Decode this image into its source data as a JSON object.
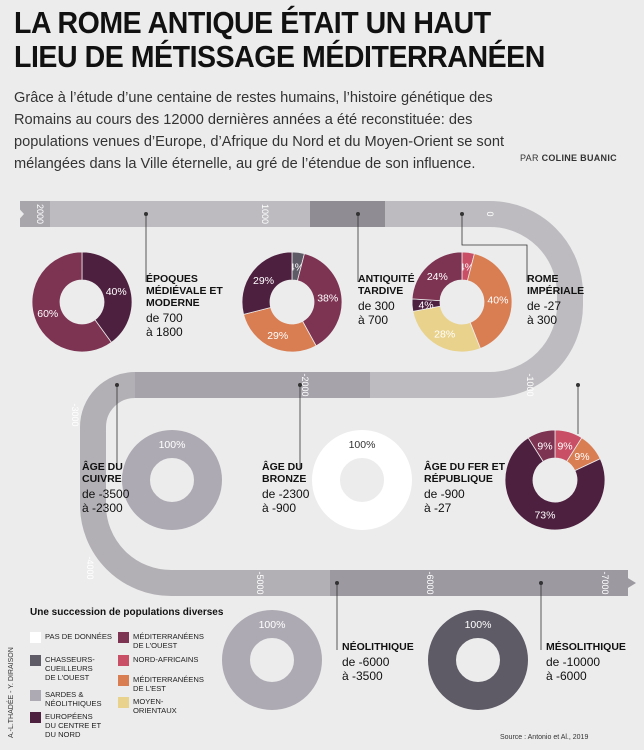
{
  "header": {
    "title_line1": "LA ROME ANTIQUE ÉTAIT UN HAUT",
    "title_line2": "LIEU DE MÉTISSAGE MÉDITERRANÉEN",
    "intro": "Grâce à l’étude d’une centaine de restes humains, l’histoire génétique des Romains au cours des 12000 dernières années a été reconstituée: des populations venues d’Europe, d’Afrique du Nord et du Moyen-Orient se sont mélangées dans la Ville éternelle, au gré de l’étendue de son influence.",
    "byline_prefix": "PAR",
    "byline_author": "COLINE BUANIC"
  },
  "colors": {
    "pas_de_donnees": "#ffffff",
    "chasseurs": "#5e5a66",
    "sardes": "#aeaab3",
    "europeens": "#4e2040",
    "med_ouest": "#7d3352",
    "nord_africains": "#c94f66",
    "med_est": "#d97d52",
    "moyen_orientaux": "#e9d28c"
  },
  "timeline": {
    "ticks": [
      "2000",
      "1000",
      "0",
      "-1000",
      "-2000",
      "-3000",
      "-4000",
      "-5000",
      "-6000",
      "-7000"
    ]
  },
  "chart_data": {
    "type": "pie",
    "variant": "donut",
    "periods": [
      {
        "name_lines": [
          "ÉPOQUES",
          "MÉDIÉVALE ET",
          "MODERNE"
        ],
        "date_lines": [
          "de 700",
          "à 1800"
        ],
        "slices": [
          {
            "group": "europeens",
            "value": 40
          },
          {
            "group": "med_ouest",
            "value": 60
          }
        ]
      },
      {
        "name_lines": [
          "ANTIQUITÉ",
          "TARDIVE"
        ],
        "date_lines": [
          "de 300",
          "à 700"
        ],
        "slices": [
          {
            "group": "chasseurs",
            "value": 4
          },
          {
            "group": "med_ouest",
            "value": 38
          },
          {
            "group": "med_est",
            "value": 29
          },
          {
            "group": "europeens",
            "value": 29
          }
        ]
      },
      {
        "name_lines": [
          "ROME",
          "IMPÉRIALE"
        ],
        "date_lines": [
          "de -27",
          "à 300"
        ],
        "slices": [
          {
            "group": "nord_africains",
            "value": 4
          },
          {
            "group": "med_est",
            "value": 40
          },
          {
            "group": "moyen_orientaux",
            "value": 28
          },
          {
            "group": "europeens",
            "value": 4
          },
          {
            "group": "med_ouest",
            "value": 24
          }
        ]
      },
      {
        "name_lines": [
          "ÂGE DU FER ET",
          "RÉPUBLIQUE"
        ],
        "date_lines": [
          "de -900",
          "à -27"
        ],
        "slices": [
          {
            "group": "nord_africains",
            "value": 9
          },
          {
            "group": "med_est",
            "value": 9
          },
          {
            "group": "europeens",
            "value": 73
          },
          {
            "group": "med_ouest",
            "value": 9
          }
        ]
      },
      {
        "name_lines": [
          "ÂGE DU",
          "BRONZE"
        ],
        "date_lines": [
          "de -2300",
          "à -900"
        ],
        "slices": [
          {
            "group": "pas_de_donnees",
            "value": 100
          }
        ]
      },
      {
        "name_lines": [
          "ÂGE DU",
          "CUIVRE"
        ],
        "date_lines": [
          "de -3500",
          "à -2300"
        ],
        "slices": [
          {
            "group": "sardes",
            "value": 100
          }
        ]
      },
      {
        "name_lines": [
          "NÉOLITHIQUE"
        ],
        "date_lines": [
          "de -6000",
          "à -3500"
        ],
        "slices": [
          {
            "group": "sardes",
            "value": 100
          }
        ]
      },
      {
        "name_lines": [
          "MÉSOLITHIQUE"
        ],
        "date_lines": [
          "de -10000",
          "à -6000"
        ],
        "slices": [
          {
            "group": "chasseurs",
            "value": 100
          }
        ]
      }
    ],
    "pct_suffix": "%"
  },
  "legend": {
    "title": "Une succession de populations diverses",
    "items": [
      {
        "group": "pas_de_donnees",
        "lines": [
          "PAS DE DONNÉES"
        ]
      },
      {
        "group": "chasseurs",
        "lines": [
          "CHASSEURS-",
          "CUEILLEURS",
          "DE L’OUEST"
        ]
      },
      {
        "group": "sardes",
        "lines": [
          "SARDES &",
          "NÉOLITHIQUES"
        ]
      },
      {
        "group": "europeens",
        "lines": [
          "EUROPÉENS",
          "DU CENTRE ET",
          "DU NORD"
        ]
      },
      {
        "group": "med_ouest",
        "lines": [
          "MÉDITERRANÉENS",
          "DE L’OUEST"
        ]
      },
      {
        "group": "nord_africains",
        "lines": [
          "NORD-AFRICAINS"
        ]
      },
      {
        "group": "med_est",
        "lines": [
          "MÉDITERRANÉENS",
          "DE L’EST"
        ]
      },
      {
        "group": "moyen_orientaux",
        "lines": [
          "MOYEN-",
          "ORIENTAUX"
        ]
      }
    ]
  },
  "footer": {
    "credits": "A.-L.THADÉE - Y. DIRAISON",
    "source": "Source : Antonio et Al., 2019"
  }
}
